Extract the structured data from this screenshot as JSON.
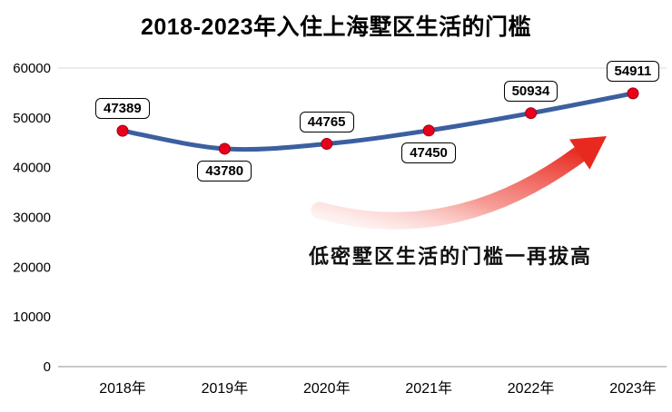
{
  "chart_data": {
    "type": "line",
    "title": "2018-2023年入住上海墅区生活的门槛",
    "categories": [
      "2018年",
      "2019年",
      "2020年",
      "2021年",
      "2022年",
      "2023年"
    ],
    "values": [
      47389,
      43780,
      44765,
      47450,
      50934,
      54911
    ],
    "xlabel": "",
    "ylabel": "",
    "ylim": [
      0,
      60000
    ],
    "yticks": [
      0,
      10000,
      20000,
      30000,
      40000,
      50000,
      60000
    ],
    "label_positions": [
      "above",
      "below",
      "above",
      "below",
      "above",
      "above"
    ],
    "annotation": "低密墅区生活的门槛一再拔高",
    "legend_position": "none",
    "grid": "top gridline and baseline only",
    "line_color": "#3c5fa0",
    "marker_color": "#e8001c",
    "arrow_color": "#e8291f",
    "label_box_border": "#000000",
    "label_box_fill": "#ffffff"
  }
}
